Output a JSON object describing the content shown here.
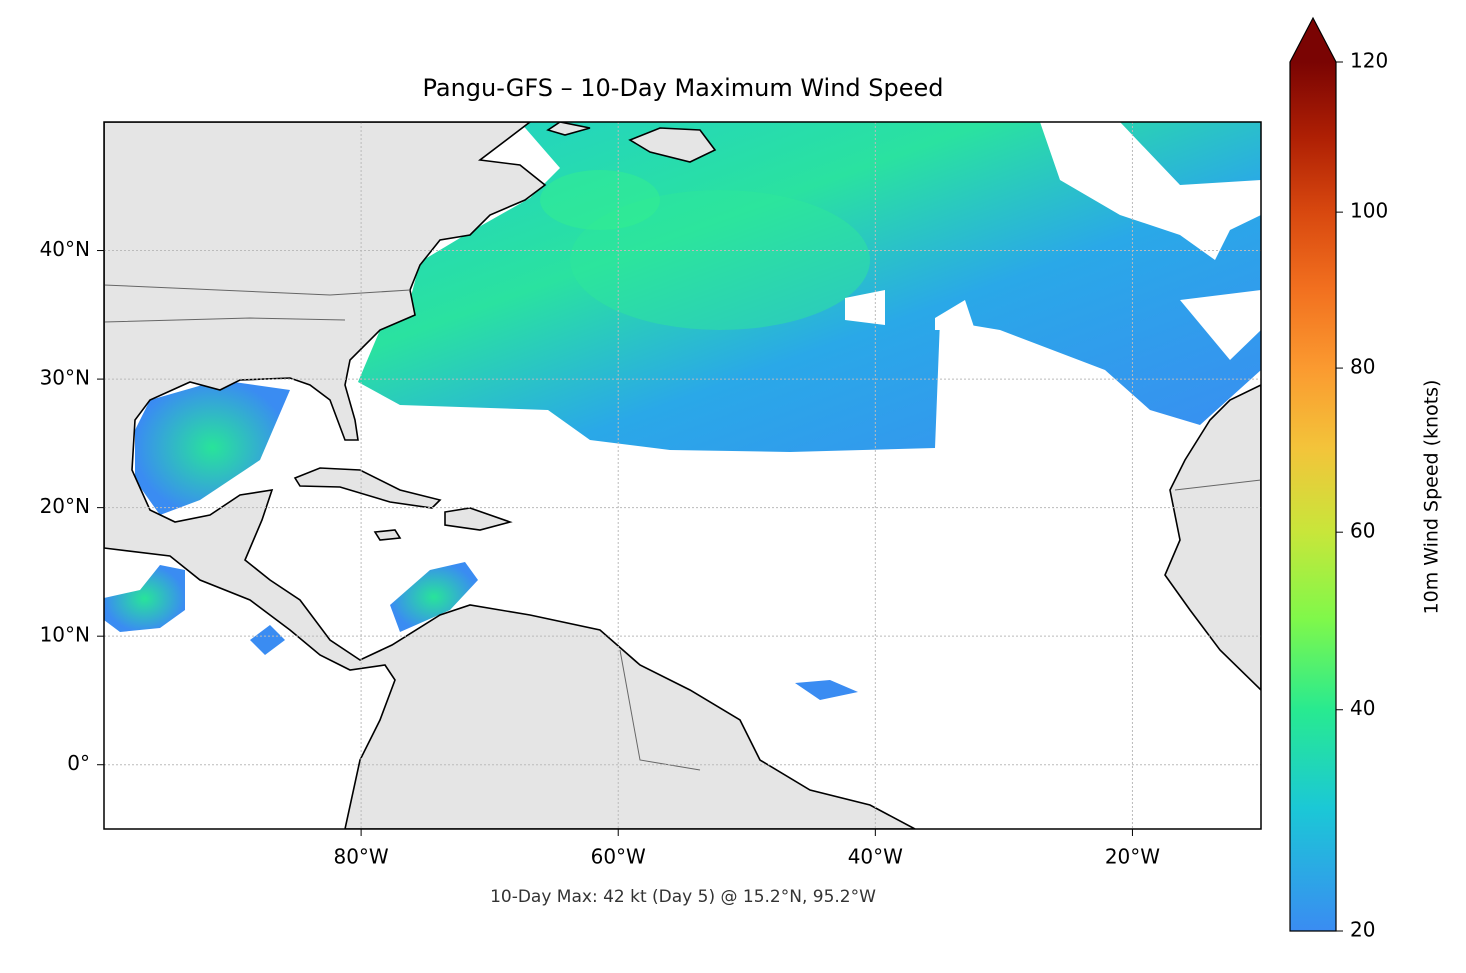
{
  "chart_data": {
    "type": "map",
    "title": "Pangu-GFS – 10-Day Maximum Wind Speed",
    "footnote": "10-Day Max: 42 kt (Day 5) @ 15.2°N, 95.2°W",
    "xlim": [
      -100,
      -10
    ],
    "ylim": [
      -5,
      50
    ],
    "xticks": [
      {
        "value": -80,
        "label": "80°W"
      },
      {
        "value": -60,
        "label": "60°W"
      },
      {
        "value": -40,
        "label": "40°W"
      },
      {
        "value": -20,
        "label": "20°W"
      }
    ],
    "yticks": [
      {
        "value": 0,
        "label": "0°"
      },
      {
        "value": 10,
        "label": "10°N"
      },
      {
        "value": 20,
        "label": "20°N"
      },
      {
        "value": 30,
        "label": "30°N"
      },
      {
        "value": 40,
        "label": "40°N"
      }
    ],
    "grid": true,
    "colorbar": {
      "label": "10m Wind Speed (knots)",
      "lim": [
        20,
        120
      ],
      "ticks": [
        20,
        40,
        60,
        80,
        100,
        120
      ],
      "norm": {
        "type": "power",
        "gamma": 0.85
      },
      "extend": "max",
      "colormap": [
        "#3a8cf2",
        "#1bc8d6",
        "#28ea90",
        "#80f84a",
        "#c8e63a",
        "#f3c43a",
        "#fb9a30",
        "#f2701f",
        "#d8480f",
        "#ae1f04",
        "#7a0403"
      ]
    }
  }
}
